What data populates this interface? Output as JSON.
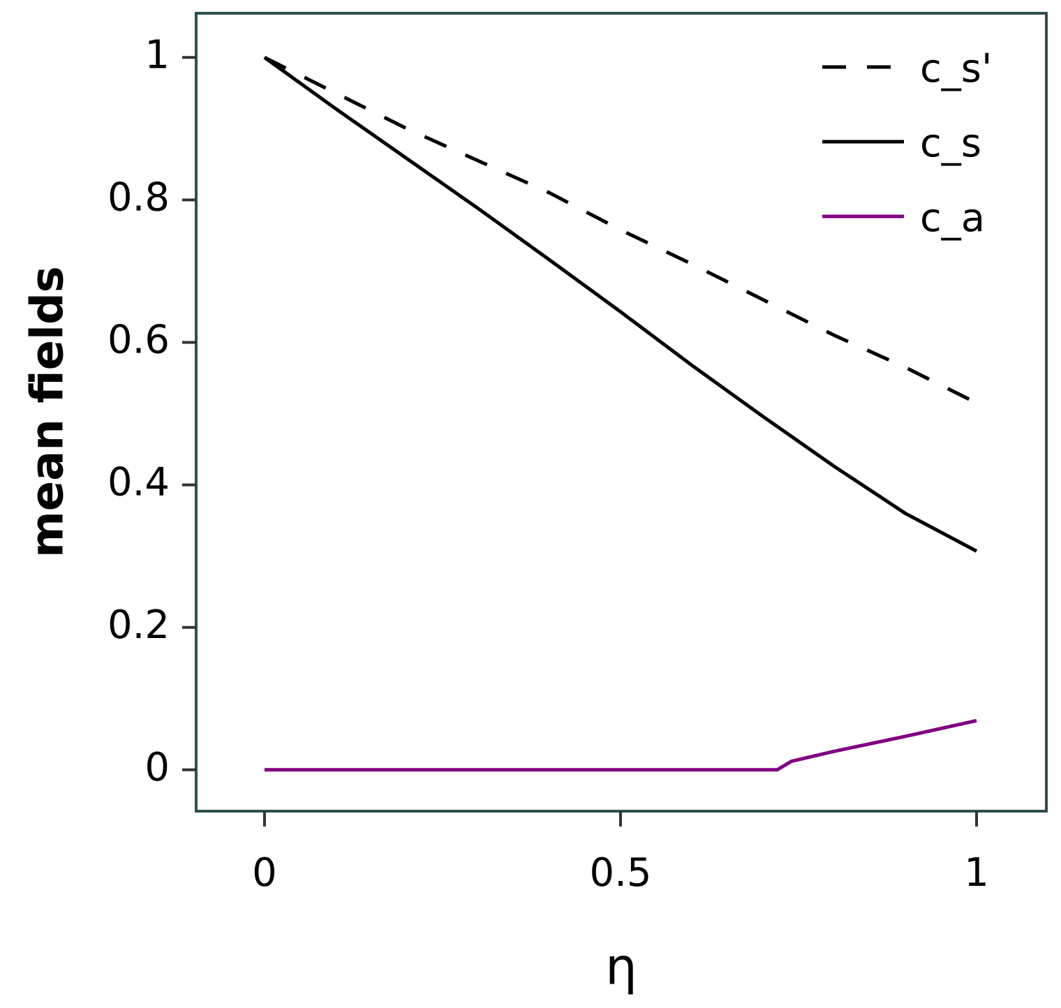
{
  "chart_data": {
    "type": "line",
    "xlabel": "η",
    "ylabel": "mean fields",
    "xlim": [
      -0.096,
      1.098
    ],
    "ylim": [
      -0.058,
      1.062
    ],
    "xticks": [
      0,
      0.5,
      1
    ],
    "yticks": [
      0,
      0.2,
      0.4,
      0.6,
      0.8,
      1
    ],
    "legend": "upper right",
    "series": [
      {
        "name": "c_s'",
        "color": "#000000",
        "linestyle": "dashed",
        "x": [
          0,
          0.1,
          0.2,
          0.3,
          0.4,
          0.5,
          0.6,
          0.7,
          0.8,
          0.9,
          1
        ],
        "values": [
          1,
          0.95,
          0.9,
          0.855,
          0.81,
          0.758,
          0.71,
          0.66,
          0.61,
          0.565,
          0.515
        ]
      },
      {
        "name": "c_s",
        "color": "#000000",
        "linestyle": "solid",
        "x": [
          0,
          0.1,
          0.2,
          0.3,
          0.4,
          0.5,
          0.6,
          0.7,
          0.8,
          0.9,
          1
        ],
        "values": [
          1,
          0.928,
          0.858,
          0.788,
          0.716,
          0.643,
          0.568,
          0.496,
          0.426,
          0.36,
          0.307
        ]
      },
      {
        "name": "c_a",
        "color": "#800080",
        "linestyle": "solid",
        "x": [
          0,
          0.72,
          0.74,
          0.8,
          0.9,
          1
        ],
        "values": [
          0,
          0,
          0.012,
          0.026,
          0.047,
          0.069
        ]
      }
    ]
  }
}
